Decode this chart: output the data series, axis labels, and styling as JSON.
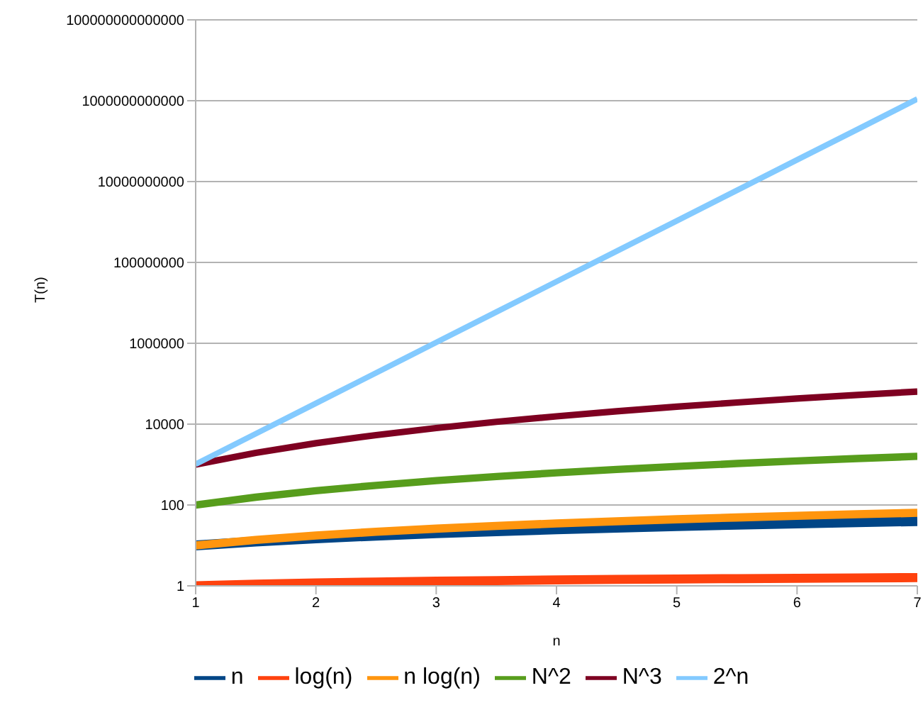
{
  "chart_data": {
    "type": "line",
    "xlabel": "n",
    "ylabel": "T(n)",
    "x": [
      1,
      1.5,
      2,
      2.5,
      3,
      3.5,
      4,
      4.5,
      5,
      5.5,
      6,
      6.5,
      7
    ],
    "series": [
      {
        "name": "n",
        "color": "#004586",
        "values": [
          10,
          12.5,
          15,
          17.5,
          20,
          22.5,
          25,
          27.5,
          30,
          32.5,
          35,
          37.5,
          40
        ]
      },
      {
        "name": "log(n)",
        "color": "#ff420e",
        "values": [
          1,
          1.1,
          1.18,
          1.24,
          1.3,
          1.35,
          1.4,
          1.44,
          1.48,
          1.51,
          1.54,
          1.57,
          1.6
        ]
      },
      {
        "name": "n log(n)",
        "color": "#ff950e",
        "values": [
          10,
          13.7,
          17.6,
          21.8,
          26,
          30.4,
          34.9,
          39.6,
          44.3,
          49.1,
          54,
          59,
          64.1
        ]
      },
      {
        "name": "N^2",
        "color": "#579d1c",
        "values": [
          100,
          156,
          225,
          306,
          400,
          506,
          625,
          756,
          900,
          1060,
          1230,
          1410,
          1600
        ]
      },
      {
        "name": "N^3",
        "color": "#7e0021",
        "values": [
          1000,
          1950,
          3380,
          5360,
          8000,
          11400,
          15600,
          20800,
          27000,
          34300,
          42900,
          52700,
          64000
        ]
      },
      {
        "name": "2^n",
        "color": "#83caff",
        "values": [
          1020,
          5790,
          32800,
          185000,
          1050000,
          5930000,
          33600000,
          190000000,
          1070000000,
          6070000000,
          34400000000,
          194000000000,
          1100000000000
        ]
      }
    ],
    "xlim": [
      1,
      7
    ],
    "xticks": [
      1,
      2,
      3,
      4,
      5,
      6,
      7
    ],
    "ylim": [
      1,
      100000000000000
    ],
    "yticks": [
      1,
      100,
      10000,
      1000000,
      100000000,
      10000000000,
      1000000000000,
      100000000000000
    ],
    "log": "y",
    "grid": "y",
    "legend": "bottom",
    "marker": "none",
    "line_style": "solid"
  }
}
